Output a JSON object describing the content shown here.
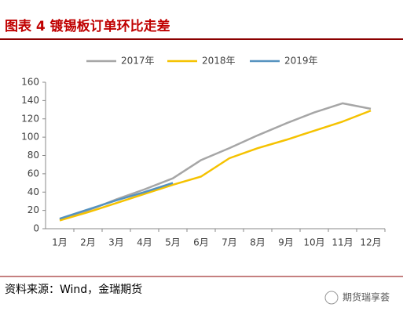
{
  "header": {
    "title": "图表 4 镀锡板订单环比走差"
  },
  "chart_data": {
    "type": "line",
    "categories": [
      "1月",
      "2月",
      "3月",
      "4月",
      "5月",
      "6月",
      "7月",
      "8月",
      "9月",
      "10月",
      "11月",
      "12月"
    ],
    "series": [
      {
        "name": "2017年",
        "color": "#a6a6a6",
        "values": [
          10,
          20,
          32,
          43,
          55,
          75,
          88,
          102,
          115,
          127,
          137,
          131
        ]
      },
      {
        "name": "2018年",
        "color": "#f5c200",
        "values": [
          9,
          18,
          28,
          38,
          48,
          57,
          77,
          88,
          97,
          107,
          117,
          129
        ]
      },
      {
        "name": "2019年",
        "color": "#5592bf",
        "values": [
          11,
          21,
          31,
          40,
          50,
          null,
          null,
          null,
          null,
          null,
          null,
          null
        ]
      }
    ],
    "ylim": [
      0,
      160
    ],
    "yticks": [
      0,
      20,
      40,
      60,
      80,
      100,
      120,
      140,
      160
    ],
    "grid": false,
    "legend": "top"
  },
  "footer": {
    "source": "资料来源：Wind，金瑞期货",
    "watermark": "期货瑞享荟"
  }
}
